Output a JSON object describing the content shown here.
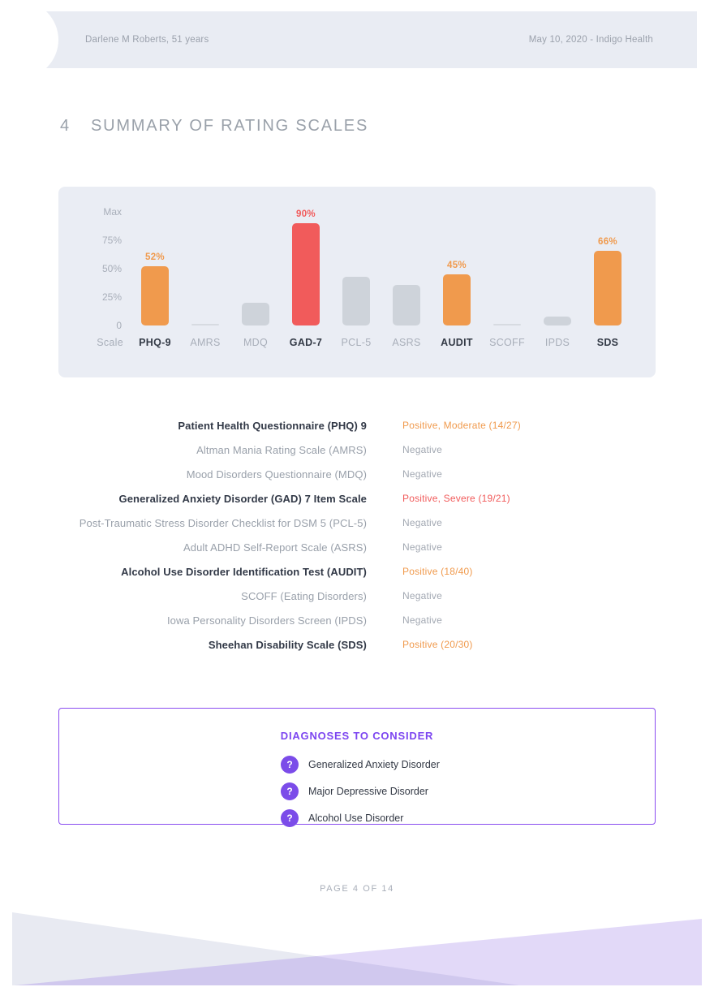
{
  "header": {
    "patient": "Darlene M Roberts, 51 years",
    "report_info": "May 10, 2020 - Indigo Health"
  },
  "section": {
    "number": "4",
    "title": "SUMMARY OF RATING SCALES"
  },
  "palette": {
    "orange": "#f09a4d",
    "red": "#f15b5b",
    "gray_bar": "#ced3da",
    "flat_bar": "#d7dbe1",
    "muted_text": "#a2a8b2",
    "dark_text": "#323947",
    "gray_name": "#99a0aa",
    "purple": "#7c45f0",
    "chart_background": "#eaedf4"
  },
  "chart_data": {
    "type": "bar",
    "title": "",
    "axis_title": "Scale",
    "ylim": [
      0,
      100
    ],
    "grid": false,
    "legend": false,
    "y_ticks": [
      {
        "label": "Max",
        "pct": 100
      },
      {
        "label": "75%",
        "pct": 75
      },
      {
        "label": "50%",
        "pct": 50
      },
      {
        "label": "25%",
        "pct": 25
      },
      {
        "label": "0",
        "pct": 0
      }
    ],
    "categories": [
      "PHQ-9",
      "AMRS",
      "MDQ",
      "GAD-7",
      "PCL-5",
      "ASRS",
      "AUDIT",
      "SCOFF",
      "IPDS",
      "SDS"
    ],
    "values": [
      52,
      0,
      20,
      90,
      43,
      36,
      45,
      0,
      8,
      66
    ],
    "bars": [
      {
        "category": "PHQ-9",
        "value_pct": 52,
        "display_label": "52%",
        "color": "orange",
        "emphasis": true
      },
      {
        "category": "AMRS",
        "value_pct": 0,
        "display_label": "",
        "color": "gray",
        "emphasis": false
      },
      {
        "category": "MDQ",
        "value_pct": 20,
        "display_label": "",
        "color": "gray",
        "emphasis": false
      },
      {
        "category": "GAD-7",
        "value_pct": 90,
        "display_label": "90%",
        "color": "red",
        "emphasis": true
      },
      {
        "category": "PCL-5",
        "value_pct": 43,
        "display_label": "",
        "color": "gray",
        "emphasis": false
      },
      {
        "category": "ASRS",
        "value_pct": 36,
        "display_label": "",
        "color": "gray",
        "emphasis": false
      },
      {
        "category": "AUDIT",
        "value_pct": 45,
        "display_label": "45%",
        "color": "orange",
        "emphasis": true
      },
      {
        "category": "SCOFF",
        "value_pct": 0,
        "display_label": "",
        "color": "gray",
        "emphasis": false
      },
      {
        "category": "IPDS",
        "value_pct": 8,
        "display_label": "",
        "color": "gray",
        "emphasis": false
      },
      {
        "category": "SDS",
        "value_pct": 66,
        "display_label": "66%",
        "color": "orange",
        "emphasis": true
      }
    ]
  },
  "scales": {
    "rows": [
      {
        "name": "Patient Health Questionnaire (PHQ) 9",
        "result": "Positive, Moderate (14/27)",
        "result_color": "orange",
        "emphasis": true
      },
      {
        "name": "Altman Mania Rating Scale (AMRS)",
        "result": "Negative",
        "result_color": "muted",
        "emphasis": false
      },
      {
        "name": "Mood Disorders Questionnaire (MDQ)",
        "result": "Negative",
        "result_color": "muted",
        "emphasis": false
      },
      {
        "name": "Generalized Anxiety Disorder (GAD) 7 Item Scale",
        "result": "Positive, Severe (19/21)",
        "result_color": "red",
        "emphasis": true
      },
      {
        "name": "Post-Traumatic Stress Disorder Checklist for DSM 5 (PCL-5)",
        "result": "Negative",
        "result_color": "muted",
        "emphasis": false
      },
      {
        "name": "Adult ADHD Self-Report Scale (ASRS)",
        "result": "Negative",
        "result_color": "muted",
        "emphasis": false
      },
      {
        "name": "Alcohol Use Disorder Identification Test (AUDIT)",
        "result": "Positive (18/40)",
        "result_color": "orange",
        "emphasis": true
      },
      {
        "name": "SCOFF (Eating Disorders)",
        "result": "Negative",
        "result_color": "muted",
        "emphasis": false
      },
      {
        "name": "Iowa Personality Disorders Screen (IPDS)",
        "result": "Negative",
        "result_color": "muted",
        "emphasis": false
      },
      {
        "name": "Sheehan Disability Scale (SDS)",
        "result": "Positive (20/30)",
        "result_color": "orange",
        "emphasis": true
      }
    ]
  },
  "diagnoses": {
    "title": "DIAGNOSES TO CONSIDER",
    "icon_glyph": "?",
    "items": [
      "Generalized Anxiety Disorder",
      "Major Depressive Disorder",
      "Alcohol Use Disorder"
    ]
  },
  "footer": {
    "page_label": "PAGE 4 OF 14"
  }
}
